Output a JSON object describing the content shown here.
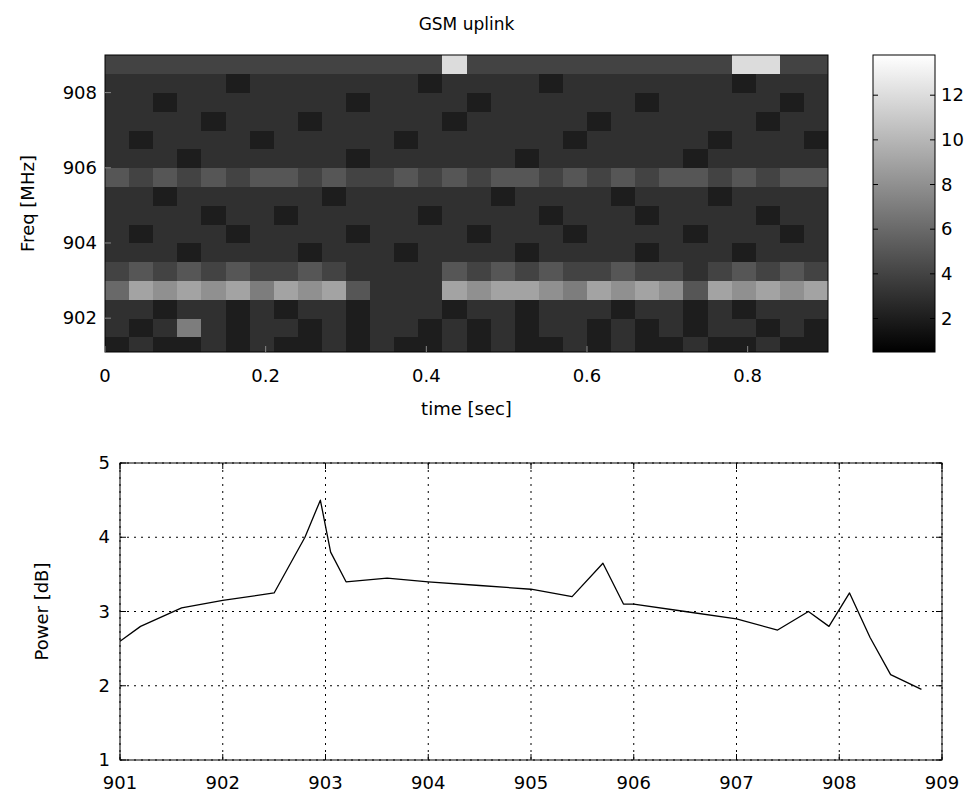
{
  "chart_data": [
    {
      "type": "heatmap",
      "title": "GSM uplink",
      "x_label": "time [sec]",
      "y_label": "Freq [MHz]",
      "x_edges": [
        0,
        0.03,
        0.06,
        0.09,
        0.12,
        0.15,
        0.18,
        0.21,
        0.24,
        0.27,
        0.3,
        0.33,
        0.36,
        0.39,
        0.42,
        0.45,
        0.48,
        0.51,
        0.54,
        0.57,
        0.6,
        0.63,
        0.66,
        0.69,
        0.72,
        0.75,
        0.78,
        0.81,
        0.84,
        0.87,
        0.9
      ],
      "y_edges": [
        901,
        901.5,
        902,
        902.5,
        903,
        903.5,
        904,
        904.5,
        905,
        905.5,
        906,
        906.5,
        907,
        907.5,
        908,
        908.5,
        909
      ],
      "cells": [
        [
          2,
          3,
          2,
          2,
          3,
          2,
          3,
          2,
          2,
          3,
          2,
          3,
          2,
          2,
          3,
          2,
          3,
          2,
          2,
          3,
          2,
          3,
          2,
          2,
          3,
          2,
          2,
          3,
          2,
          2
        ],
        [
          3,
          2,
          3,
          7,
          3,
          2,
          3,
          3,
          2,
          3,
          2,
          3,
          3,
          2,
          3,
          2,
          3,
          2,
          3,
          3,
          2,
          3,
          2,
          3,
          2,
          3,
          3,
          2,
          3,
          2
        ],
        [
          3,
          3,
          2,
          3,
          3,
          2,
          3,
          2,
          3,
          3,
          2,
          3,
          3,
          3,
          2,
          3,
          3,
          2,
          3,
          3,
          3,
          2,
          3,
          3,
          2,
          3,
          2,
          3,
          3,
          3
        ],
        [
          6,
          9,
          8,
          9,
          8,
          9,
          7,
          9,
          8,
          9,
          5,
          3,
          3,
          3,
          9,
          8,
          9,
          9,
          8,
          7,
          9,
          8,
          9,
          8,
          5,
          9,
          8,
          9,
          8,
          9
        ],
        [
          4,
          5,
          4,
          5,
          4,
          5,
          4,
          4,
          5,
          4,
          3,
          3,
          3,
          3,
          5,
          4,
          5,
          4,
          5,
          4,
          4,
          5,
          4,
          4,
          3,
          4,
          5,
          4,
          5,
          4
        ],
        [
          3,
          3,
          3,
          2,
          3,
          3,
          3,
          3,
          2,
          3,
          3,
          3,
          2,
          3,
          3,
          3,
          3,
          2,
          3,
          3,
          3,
          3,
          2,
          3,
          3,
          3,
          2,
          3,
          3,
          3
        ],
        [
          3,
          2,
          3,
          3,
          3,
          2,
          3,
          3,
          3,
          3,
          2,
          3,
          3,
          3,
          3,
          2,
          3,
          3,
          3,
          2,
          3,
          3,
          3,
          3,
          2,
          3,
          3,
          3,
          2,
          3
        ],
        [
          3,
          3,
          3,
          3,
          2,
          3,
          3,
          2,
          3,
          3,
          3,
          3,
          3,
          2,
          3,
          3,
          3,
          3,
          2,
          3,
          3,
          3,
          2,
          3,
          3,
          3,
          3,
          2,
          3,
          3
        ],
        [
          3,
          3,
          2,
          3,
          3,
          3,
          3,
          3,
          3,
          2,
          3,
          3,
          3,
          3,
          3,
          3,
          2,
          3,
          3,
          3,
          3,
          2,
          3,
          3,
          3,
          2,
          3,
          3,
          3,
          3
        ],
        [
          5,
          4,
          5,
          4,
          5,
          4,
          5,
          5,
          4,
          5,
          4,
          4,
          5,
          4,
          5,
          4,
          5,
          5,
          4,
          5,
          4,
          5,
          4,
          5,
          5,
          4,
          5,
          4,
          5,
          5
        ],
        [
          3,
          3,
          3,
          2,
          3,
          3,
          3,
          3,
          3,
          3,
          2,
          3,
          3,
          3,
          3,
          3,
          3,
          2,
          3,
          3,
          3,
          3,
          3,
          3,
          2,
          3,
          3,
          3,
          3,
          3
        ],
        [
          3,
          2,
          3,
          3,
          3,
          3,
          2,
          3,
          3,
          3,
          3,
          3,
          2,
          3,
          3,
          3,
          3,
          3,
          3,
          2,
          3,
          3,
          3,
          3,
          3,
          2,
          3,
          3,
          3,
          2
        ],
        [
          3,
          3,
          3,
          3,
          2,
          3,
          3,
          3,
          2,
          3,
          3,
          3,
          3,
          3,
          2,
          3,
          3,
          3,
          3,
          3,
          2,
          3,
          3,
          3,
          3,
          3,
          3,
          2,
          3,
          3
        ],
        [
          3,
          3,
          2,
          3,
          3,
          3,
          3,
          3,
          3,
          3,
          2,
          3,
          3,
          3,
          3,
          2,
          3,
          3,
          3,
          3,
          3,
          3,
          2,
          3,
          3,
          3,
          3,
          3,
          2,
          3
        ],
        [
          3,
          3,
          3,
          3,
          3,
          2,
          3,
          3,
          3,
          3,
          3,
          3,
          3,
          2,
          3,
          3,
          3,
          3,
          2,
          3,
          3,
          3,
          3,
          3,
          3,
          3,
          2,
          3,
          3,
          3
        ],
        [
          4,
          4,
          4,
          4,
          4,
          4,
          4,
          4,
          4,
          4,
          4,
          4,
          4,
          4,
          12,
          4,
          4,
          4,
          4,
          4,
          4,
          4,
          4,
          4,
          4,
          4,
          12,
          12,
          4,
          4
        ]
      ],
      "xlim": [
        0,
        0.9
      ],
      "ylim": [
        901.1,
        909
      ],
      "xticks": [
        0,
        0.2,
        0.4,
        0.6,
        0.8
      ],
      "yticks": [
        902,
        904,
        906,
        908
      ],
      "color_range": [
        0.5,
        13.8
      ],
      "color_ticks": [
        2,
        4,
        6,
        8,
        10,
        12
      ]
    },
    {
      "type": "line",
      "y_label": "Power [dB]",
      "x": [
        901,
        901.2,
        901.6,
        902,
        902.5,
        902.8,
        902.95,
        903.05,
        903.2,
        903.6,
        904,
        904.5,
        905,
        905.4,
        905.7,
        905.9,
        906,
        906.5,
        907,
        907.4,
        907.7,
        907.9,
        908.1,
        908.3,
        908.5,
        908.8
      ],
      "series": [
        {
          "color": "#000000",
          "values": [
            2.6,
            2.8,
            3.05,
            3.15,
            3.25,
            4.0,
            4.5,
            3.8,
            3.4,
            3.45,
            3.4,
            3.35,
            3.3,
            3.2,
            3.65,
            3.1,
            3.1,
            3.0,
            2.9,
            2.75,
            3.0,
            2.8,
            3.25,
            2.65,
            2.15,
            1.95
          ]
        }
      ],
      "xlim": [
        901,
        909
      ],
      "ylim": [
        1,
        5
      ],
      "xticks": [
        901,
        902,
        903,
        904,
        905,
        906,
        907,
        908,
        909
      ],
      "yticks": [
        1,
        2,
        3,
        4,
        5
      ],
      "grid": true
    }
  ]
}
